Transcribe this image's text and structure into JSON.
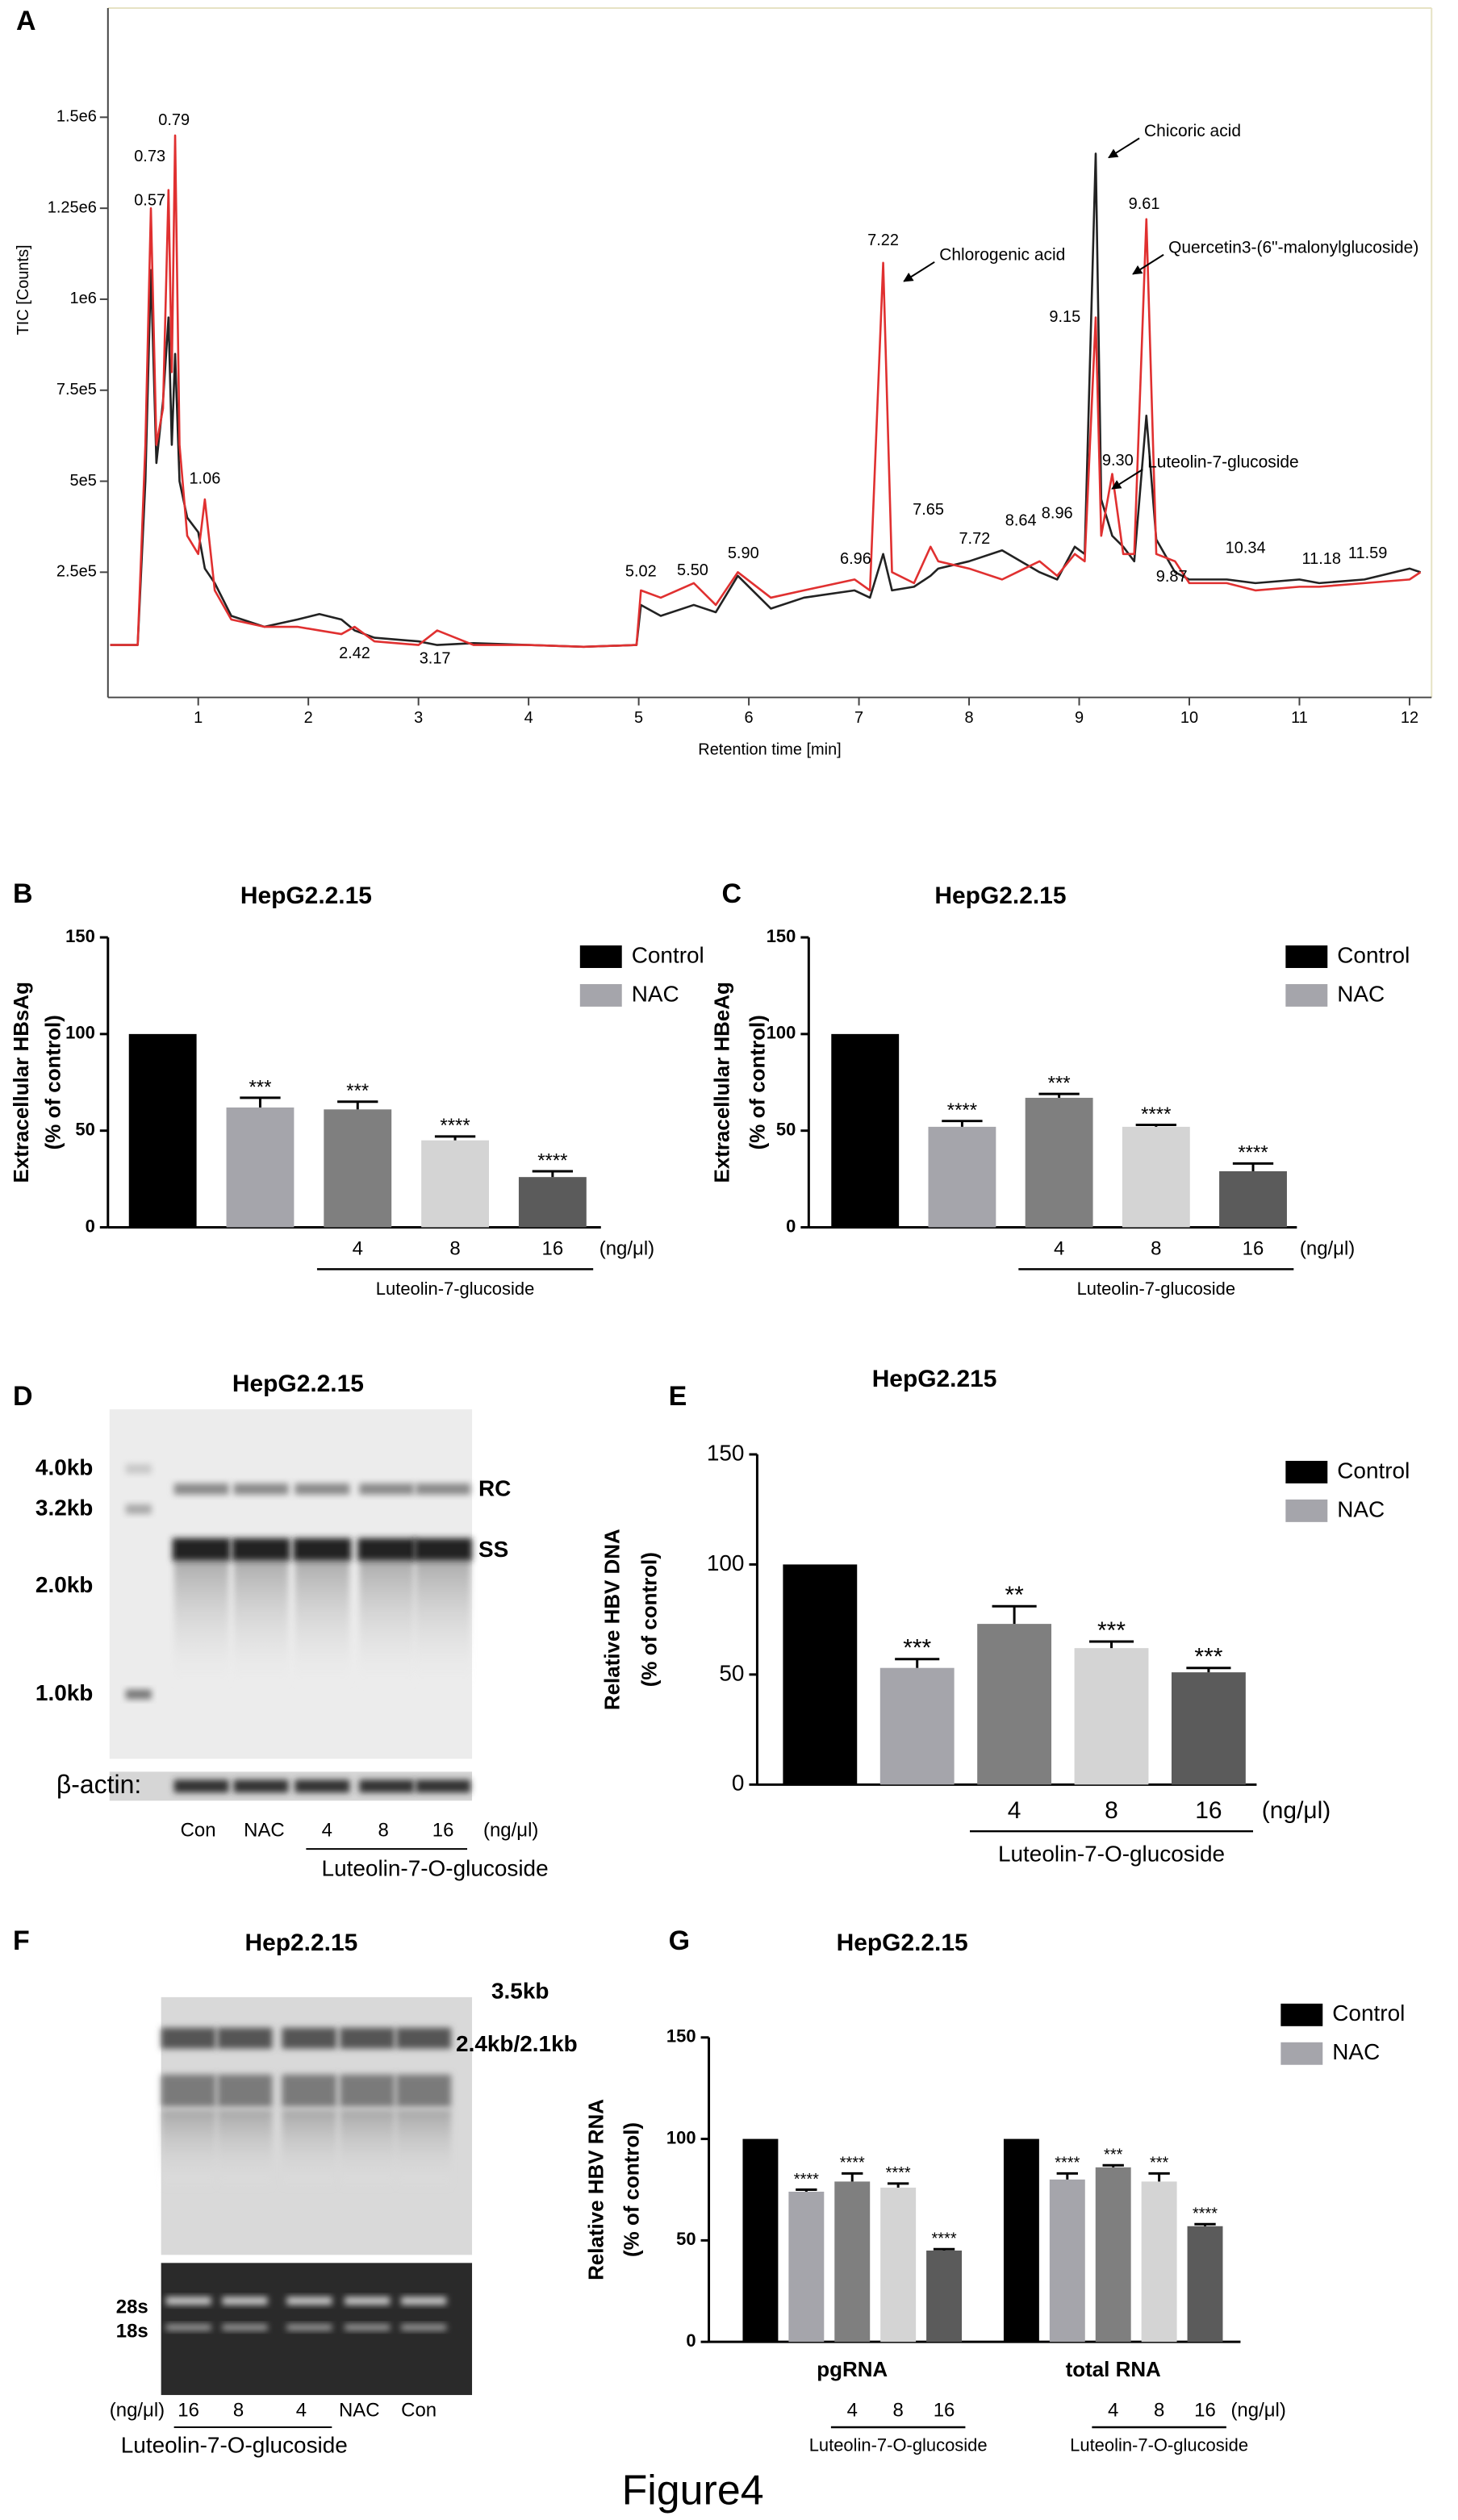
{
  "figure_title": "Figure4",
  "chart_data": [
    {
      "panel": "A",
      "type": "line",
      "ylabel": "TIC [Counts]",
      "xlabel": "Retention time [min]",
      "xlim": [
        0.18,
        12.2
      ],
      "ylim": [
        -94000,
        1800000
      ],
      "xticks": [
        1,
        2,
        3,
        4,
        5,
        6,
        7,
        8,
        9,
        10,
        11,
        12
      ],
      "yticks": [
        {
          "value": 250000,
          "label": "2.5e5"
        },
        {
          "value": 500000,
          "label": "5e5"
        },
        {
          "value": 750000,
          "label": "7.5e5"
        },
        {
          "value": 1000000,
          "label": "1e6"
        },
        {
          "value": 1250000,
          "label": "1.25e6"
        },
        {
          "value": 1500000,
          "label": "1.5e6"
        }
      ],
      "x": [
        0.2,
        0.45,
        0.52,
        0.57,
        0.62,
        0.68,
        0.73,
        0.76,
        0.79,
        0.83,
        0.9,
        1.0,
        1.06,
        1.15,
        1.3,
        1.6,
        1.9,
        2.1,
        2.3,
        2.42,
        2.6,
        3.0,
        3.17,
        3.5,
        4.0,
        4.5,
        4.98,
        5.02,
        5.2,
        5.5,
        5.7,
        5.9,
        6.2,
        6.5,
        6.96,
        7.1,
        7.22,
        7.3,
        7.5,
        7.65,
        7.72,
        8.0,
        8.3,
        8.64,
        8.8,
        8.96,
        9.05,
        9.15,
        9.2,
        9.3,
        9.4,
        9.5,
        9.61,
        9.7,
        9.87,
        10.0,
        10.34,
        10.6,
        11.0,
        11.18,
        11.59,
        12.0,
        12.1
      ],
      "series": [
        {
          "color": "#222222",
          "values": [
            50000,
            50000,
            500000,
            1080000,
            550000,
            720000,
            950000,
            600000,
            850000,
            500000,
            400000,
            360000,
            260000,
            220000,
            130000,
            100000,
            120000,
            135000,
            120000,
            90000,
            70000,
            60000,
            50000,
            55000,
            50000,
            45000,
            50000,
            160000,
            130000,
            160000,
            140000,
            240000,
            150000,
            180000,
            200000,
            180000,
            300000,
            200000,
            210000,
            240000,
            260000,
            280000,
            310000,
            250000,
            230000,
            320000,
            300000,
            1400000,
            450000,
            350000,
            320000,
            280000,
            680000,
            340000,
            250000,
            230000,
            230000,
            220000,
            230000,
            220000,
            230000,
            260000,
            250000
          ]
        },
        {
          "color": "#e03030",
          "values": [
            50000,
            50000,
            600000,
            1250000,
            600000,
            700000,
            1300000,
            800000,
            1450000,
            600000,
            350000,
            300000,
            450000,
            200000,
            120000,
            100000,
            100000,
            90000,
            80000,
            100000,
            60000,
            50000,
            90000,
            50000,
            50000,
            45000,
            50000,
            200000,
            180000,
            220000,
            160000,
            250000,
            180000,
            200000,
            230000,
            200000,
            1100000,
            250000,
            220000,
            320000,
            280000,
            260000,
            230000,
            280000,
            240000,
            300000,
            280000,
            950000,
            350000,
            520000,
            300000,
            300000,
            1220000,
            300000,
            280000,
            220000,
            220000,
            200000,
            210000,
            210000,
            220000,
            230000,
            250000
          ]
        }
      ],
      "peak_labels": [
        {
          "text": "0.57",
          "x": 0.56,
          "y": 1270000
        },
        {
          "text": "0.73",
          "x": 0.56,
          "y": 1390000
        },
        {
          "text": "0.79",
          "x": 0.78,
          "y": 1490000
        },
        {
          "text": "1.06",
          "x": 1.06,
          "y": 505000
        },
        {
          "text": "2.42",
          "x": 2.42,
          "y": 25000
        },
        {
          "text": "3.17",
          "x": 3.15,
          "y": 11000
        },
        {
          "text": "5.02",
          "x": 5.02,
          "y": 250000
        },
        {
          "text": "5.50",
          "x": 5.49,
          "y": 254000
        },
        {
          "text": "5.90",
          "x": 5.95,
          "y": 300000
        },
        {
          "text": "6.96",
          "x": 6.97,
          "y": 285000
        },
        {
          "text": "7.22",
          "x": 7.22,
          "y": 1160000
        },
        {
          "text": "7.65",
          "x": 7.63,
          "y": 420000
        },
        {
          "text": "7.72",
          "x": 8.05,
          "y": 340000
        },
        {
          "text": "8.64",
          "x": 8.47,
          "y": 390000
        },
        {
          "text": "8.96",
          "x": 8.8,
          "y": 410000
        },
        {
          "text": "9.15",
          "x": 8.87,
          "y": 950000
        },
        {
          "text": "9.30",
          "x": 9.35,
          "y": 555000
        },
        {
          "text": "9.61",
          "x": 9.59,
          "y": 1260000
        },
        {
          "text": "9.87",
          "x": 9.84,
          "y": 236000
        },
        {
          "text": "10.34",
          "x": 10.51,
          "y": 315000
        },
        {
          "text": "11.18",
          "x": 11.2,
          "y": 285000
        },
        {
          "text": "11.59",
          "x": 11.62,
          "y": 300000
        }
      ],
      "compound_labels": [
        {
          "text": "Chlorogenic acid",
          "x": 7.73,
          "y": 1120000
        },
        {
          "text": "Chicoric acid",
          "x": 9.59,
          "y": 1460000
        },
        {
          "text": "Quercetin3-(6\"-malonylglucoside)",
          "x": 9.81,
          "y": 1140000
        },
        {
          "text": "Luteolin-7-glucoside",
          "x": 9.62,
          "y": 550000
        }
      ]
    },
    {
      "panel": "B",
      "type": "bar",
      "title": "HepG2.2.15",
      "ylabel": [
        "Extracellular HBsAg",
        "(% of control)"
      ],
      "categories": [
        null,
        null,
        "4",
        "8",
        "16"
      ],
      "values": [
        100,
        62,
        61,
        45,
        26
      ],
      "errors": [
        null,
        5,
        4,
        2,
        3
      ],
      "significance": [
        null,
        "***",
        "***",
        "****",
        "****"
      ],
      "colors": [
        "#000000",
        "#a5a5ab",
        "#7f7f7f",
        "#d4d4d4",
        "#5b5b5b"
      ],
      "legend": [
        {
          "name": "Control",
          "color": "#000000"
        },
        {
          "name": "NAC",
          "color": "#a5a5ab"
        }
      ],
      "ylim": [
        0,
        150
      ],
      "yticks": [
        0,
        50,
        100,
        150
      ],
      "unit_label": "(ng/μl)",
      "group_label": "Luteolin-7-glucoside"
    },
    {
      "panel": "C",
      "type": "bar",
      "title": "HepG2.2.15",
      "ylabel": [
        "Extracellular HBeAg",
        "(% of control)"
      ],
      "categories": [
        null,
        null,
        "4",
        "8",
        "16"
      ],
      "values": [
        100,
        52,
        67,
        52,
        29
      ],
      "errors": [
        null,
        3,
        2,
        1,
        4
      ],
      "significance": [
        null,
        "****",
        "***",
        "****",
        "****"
      ],
      "colors": [
        "#000000",
        "#a5a5ab",
        "#7f7f7f",
        "#d4d4d4",
        "#5b5b5b"
      ],
      "legend": [
        {
          "name": "Control",
          "color": "#000000"
        },
        {
          "name": "NAC",
          "color": "#a5a5ab"
        }
      ],
      "ylim": [
        0,
        150
      ],
      "yticks": [
        0,
        50,
        100,
        150
      ],
      "unit_label": "(ng/μl)",
      "group_label": "Luteolin-7-glucoside"
    },
    {
      "panel": "E",
      "type": "bar",
      "title": "HepG2.215",
      "ylabel": [
        "Relative HBV DNA",
        "(% of control)"
      ],
      "categories": [
        null,
        null,
        "4",
        "8",
        "16"
      ],
      "values": [
        100,
        53,
        73,
        62,
        51
      ],
      "errors": [
        null,
        4,
        8,
        3,
        2
      ],
      "significance": [
        null,
        "***",
        "**",
        "***",
        "***"
      ],
      "colors": [
        "#000000",
        "#a5a5ab",
        "#7f7f7f",
        "#d4d4d4",
        "#5b5b5b"
      ],
      "legend": [
        {
          "name": "Control",
          "color": "#000000"
        },
        {
          "name": "NAC",
          "color": "#a5a5ab"
        }
      ],
      "ylim": [
        0,
        150
      ],
      "yticks": [
        0,
        50,
        100,
        150
      ],
      "unit_label": "(ng/μl)",
      "group_label": "Luteolin-7-O-glucoside"
    },
    {
      "panel": "G",
      "type": "grouped_bar",
      "title": "HepG2.2.15",
      "ylabel": [
        "Relative HBV RNA",
        "(% of control)"
      ],
      "categories": [
        "pgRNA",
        "total RNA"
      ],
      "series": [
        {
          "name": "Control",
          "color": "#000000",
          "values": [
            100,
            100
          ],
          "errors": [
            null,
            null
          ],
          "significance": [
            null,
            null
          ]
        },
        {
          "name": "NAC",
          "color": "#a5a5ab",
          "values": [
            74,
            80
          ],
          "errors": [
            1,
            3
          ],
          "significance": [
            "****",
            "****"
          ]
        },
        {
          "color": "#7f7f7f",
          "values": [
            79,
            86
          ],
          "errors": [
            4,
            1
          ],
          "significance": [
            "****",
            "***"
          ]
        },
        {
          "color": "#d4d4d4",
          "values": [
            76,
            79
          ],
          "errors": [
            2,
            4
          ],
          "significance": [
            "****",
            "***"
          ]
        },
        {
          "color": "#5b5b5b",
          "values": [
            45,
            57
          ],
          "errors": [
            0.7,
            1
          ],
          "significance": [
            "****",
            "****"
          ]
        }
      ],
      "doses": [
        null,
        null,
        "4",
        "8",
        "16"
      ],
      "ylim": [
        0,
        150
      ],
      "yticks": [
        0,
        50,
        100,
        150
      ],
      "unit_label": "(ng/μl)",
      "group_label": "Luteolin-7-O-glucoside"
    }
  ],
  "blots": [
    {
      "panel": "D",
      "title": "HepG2.2.15",
      "size_labels": [
        "4.0kb",
        "3.2kb",
        "2.0kb",
        "1.0kb"
      ],
      "band_labels": [
        "RC",
        "SS"
      ],
      "loading_label": "β-actin:",
      "lanes": [
        "Con",
        "NAC",
        "4",
        "8",
        "16"
      ],
      "unit_label": "(ng/μl)",
      "group_label": "Luteolin-7-O-glucoside"
    },
    {
      "panel": "F",
      "title": "Hep2.2.15",
      "size_labels": [
        "3.5kb",
        "2.4kb/2.1kb"
      ],
      "rrna_labels": [
        "28s",
        "18s"
      ],
      "lanes": [
        "16",
        "8",
        "4",
        "NAC",
        "Con"
      ],
      "unit_label": "(ng/μl)",
      "group_label": "Luteolin-7-O-glucoside"
    }
  ]
}
